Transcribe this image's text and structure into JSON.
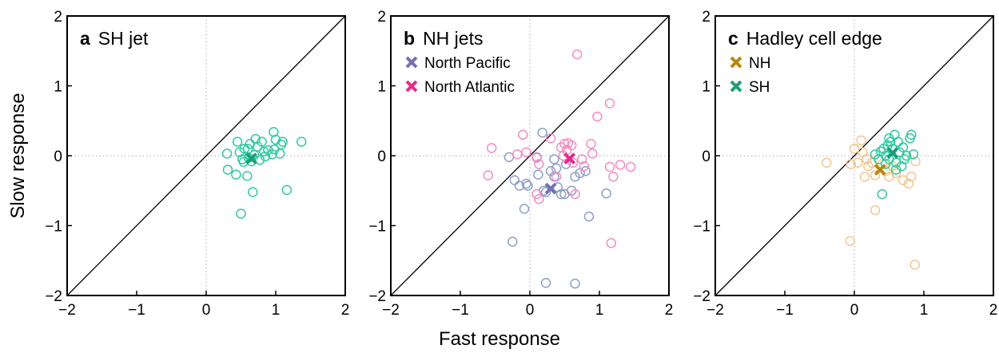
{
  "xlabel": "Fast response",
  "ylabel": "Slow response",
  "chart_data": [
    {
      "type": "scatter",
      "panel": "a",
      "title": "SH jet",
      "xlim": [
        -2,
        2
      ],
      "ylim": [
        -2,
        2
      ],
      "xticks": [
        {
          "value": -2,
          "label": "−2"
        },
        {
          "value": -1,
          "label": "−1"
        },
        {
          "value": 0,
          "label": "0"
        },
        {
          "value": 1,
          "label": "1"
        },
        {
          "value": 2,
          "label": "2"
        }
      ],
      "yticks": [
        {
          "value": -2,
          "label": "−2"
        },
        {
          "value": -1,
          "label": "−1"
        },
        {
          "value": 0,
          "label": "0"
        },
        {
          "value": 1,
          "label": "1"
        },
        {
          "value": 2,
          "label": "2"
        }
      ],
      "series": [
        {
          "color": "#1b9e77",
          "point_color": "#2fc9a0",
          "x": [
            0.3,
            0.31,
            0.45,
            0.48,
            0.54,
            0.6,
            0.61,
            0.63,
            0.65,
            0.69,
            0.71,
            0.74,
            0.77,
            0.8,
            0.83,
            0.85,
            0.89,
            0.98,
            1.06,
            1.08,
            1.0,
            0.97,
            1.1,
            1.37,
            0.43,
            0.59,
            0.67,
            0.5,
            1.16,
            0.95,
            0.55,
            0.52
          ],
          "y": [
            0.03,
            -0.2,
            0.2,
            0.05,
            -0.09,
            0.1,
            -0.03,
            0.17,
            -0.08,
            0.01,
            0.24,
            0.13,
            -0.06,
            0.2,
            0.06,
            -0.01,
            0.08,
            0.09,
            0.03,
            0.16,
            0.23,
            0.34,
            0.2,
            0.2,
            -0.27,
            -0.29,
            -0.52,
            -0.83,
            -0.49,
            0.02,
            0.1,
            -0.05
          ],
          "mean_x": 0.65,
          "mean_y": -0.04
        }
      ]
    },
    {
      "type": "scatter",
      "panel": "b",
      "title": "NH jets",
      "xlim": [
        -2,
        2
      ],
      "ylim": [
        -2,
        2
      ],
      "xticks": [
        {
          "value": -2,
          "label": "−2"
        },
        {
          "value": -1,
          "label": "−1"
        },
        {
          "value": 0,
          "label": "0"
        },
        {
          "value": 1,
          "label": "1"
        },
        {
          "value": 2,
          "label": "2"
        }
      ],
      "yticks": [
        {
          "value": -2,
          "label": "−2"
        },
        {
          "value": -1,
          "label": "−1"
        },
        {
          "value": 0,
          "label": "0"
        },
        {
          "value": 1,
          "label": "1"
        },
        {
          "value": 2,
          "label": "2"
        }
      ],
      "series": [
        {
          "name": "North Pacific",
          "color": "#7570b3",
          "point_color": "#8b9fcb",
          "x": [
            -0.3,
            -0.22,
            -0.15,
            -0.03,
            -0.05,
            0.18,
            0.12,
            0.2,
            0.23,
            0.3,
            0.35,
            0.4,
            0.45,
            0.5,
            0.6,
            0.65,
            0.72,
            0.8,
            0.52,
            0.38,
            -0.08,
            0.85,
            1.1,
            -0.25,
            0.23,
            0.65,
            0.1,
            0.35
          ],
          "y": [
            -0.02,
            -0.35,
            -0.43,
            -0.43,
            -0.4,
            0.33,
            -0.27,
            -0.5,
            -0.52,
            -0.22,
            -0.3,
            -0.45,
            -0.55,
            -0.55,
            -0.5,
            -0.3,
            -0.25,
            -0.22,
            -0.12,
            -0.18,
            -0.76,
            -0.87,
            -0.54,
            -1.23,
            -1.82,
            -1.83,
            -0.02,
            -0.05
          ],
          "mean_x": 0.3,
          "mean_y": -0.47
        },
        {
          "name": "North Atlantic",
          "color": "#e7298a",
          "point_color": "#f48cc0",
          "x": [
            -0.55,
            -0.6,
            -0.1,
            -0.05,
            0.1,
            0.3,
            0.45,
            0.5,
            0.55,
            0.6,
            0.48,
            0.53,
            0.62,
            0.75,
            0.88,
            0.9,
            0.78,
            0.97,
            1.15,
            0.68,
            1.15,
            1.2,
            1.3,
            1.45,
            0.65,
            0.38,
            0.13,
            0.1,
            0.13,
            1.17,
            -0.18
          ],
          "y": [
            0.11,
            -0.28,
            0.3,
            0.05,
            -0.03,
            0.25,
            0.12,
            0.17,
            0.18,
            0.15,
            0.0,
            0.08,
            -0.1,
            -0.05,
            0.17,
            0.03,
            -0.15,
            0.56,
            0.75,
            1.45,
            -0.16,
            -0.3,
            -0.13,
            -0.16,
            -0.55,
            -0.3,
            -0.12,
            -0.55,
            -0.62,
            -1.25,
            0.02
          ],
          "mean_x": 0.57,
          "mean_y": -0.04
        }
      ]
    },
    {
      "type": "scatter",
      "panel": "c",
      "title": "Hadley cell edge",
      "xlim": [
        -2,
        2
      ],
      "ylim": [
        -2,
        2
      ],
      "xticks": [
        {
          "value": -2,
          "label": "−2"
        },
        {
          "value": -1,
          "label": "−1"
        },
        {
          "value": 0,
          "label": "0"
        },
        {
          "value": 1,
          "label": "1"
        },
        {
          "value": 2,
          "label": "2"
        }
      ],
      "yticks": [
        {
          "value": -2,
          "label": "−2"
        },
        {
          "value": -1,
          "label": "−1"
        },
        {
          "value": 0,
          "label": "0"
        },
        {
          "value": 1,
          "label": "1"
        },
        {
          "value": 2,
          "label": "2"
        }
      ],
      "series": [
        {
          "name": "NH",
          "color": "#b8860b",
          "point_color": "#f2c690",
          "x": [
            -0.4,
            0.0,
            -0.05,
            0.1,
            0.12,
            0.18,
            0.2,
            0.25,
            0.3,
            0.35,
            0.4,
            0.45,
            0.5,
            0.55,
            0.6,
            0.7,
            0.78,
            0.82,
            0.88,
            0.3,
            -0.06,
            0.87,
            0.15,
            0.05
          ],
          "y": [
            -0.1,
            0.1,
            -0.12,
            0.22,
            0.05,
            -0.05,
            -0.15,
            -0.1,
            -0.28,
            -0.05,
            -0.12,
            -0.22,
            -0.3,
            -0.15,
            -0.25,
            -0.35,
            -0.4,
            -0.3,
            -0.08,
            -0.78,
            -1.22,
            -1.56,
            -0.3,
            -0.1
          ],
          "mean_x": 0.37,
          "mean_y": -0.2
        },
        {
          "name": "SH",
          "color": "#1b9e77",
          "point_color": "#2fc9a0",
          "x": [
            0.3,
            0.35,
            0.38,
            0.42,
            0.45,
            0.48,
            0.5,
            0.52,
            0.55,
            0.58,
            0.6,
            0.63,
            0.65,
            0.7,
            0.72,
            0.75,
            0.8,
            0.82,
            0.85,
            0.6,
            0.68,
            0.4,
            0.45,
            0.5
          ],
          "y": [
            0.02,
            -0.05,
            0.06,
            0.1,
            0.0,
            0.15,
            -0.05,
            0.2,
            0.1,
            0.3,
            -0.1,
            0.2,
            0.05,
            0.12,
            -0.05,
            0.0,
            0.25,
            0.3,
            0.02,
            -0.2,
            -0.15,
            -0.55,
            -0.12,
            0.25
          ],
          "mean_x": 0.55,
          "mean_y": 0.04
        }
      ]
    }
  ]
}
